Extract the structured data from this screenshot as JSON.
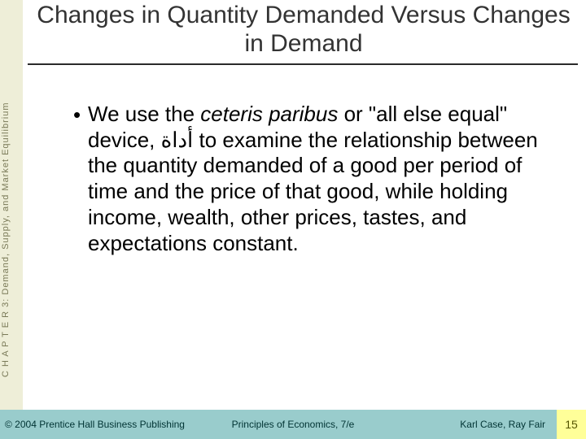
{
  "spine": {
    "text": "C H A P T E R  3:  Demand, Supply, and Market Equilibrium",
    "background": "#eeeed8",
    "text_color": "#7a7a58"
  },
  "title": {
    "text": "Changes in Quantity Demanded Versus Changes in Demand",
    "color": "#333333",
    "fontsize": 30,
    "rule_color": "#2a2a2a"
  },
  "body": {
    "bullet_char": "•",
    "segments": {
      "pre": "We use the ",
      "italic": "ceteris paribus",
      "post": " or \"all else equal\" device, أداة to examine the relationship between the quantity demanded of a good per period of time and the price of that good, while holding income, wealth, other prices, tastes, and expectations constant."
    },
    "fontsize": 26,
    "color": "#000000"
  },
  "footer": {
    "left": "© 2004 Prentice Hall Business Publishing",
    "center": "Principles of Economics, 7/e",
    "right": "Karl Case, Ray Fair",
    "page": "15",
    "background": "#99cccc",
    "text_color": "#003333",
    "page_bg": "#ffff99",
    "page_color": "#555500"
  }
}
